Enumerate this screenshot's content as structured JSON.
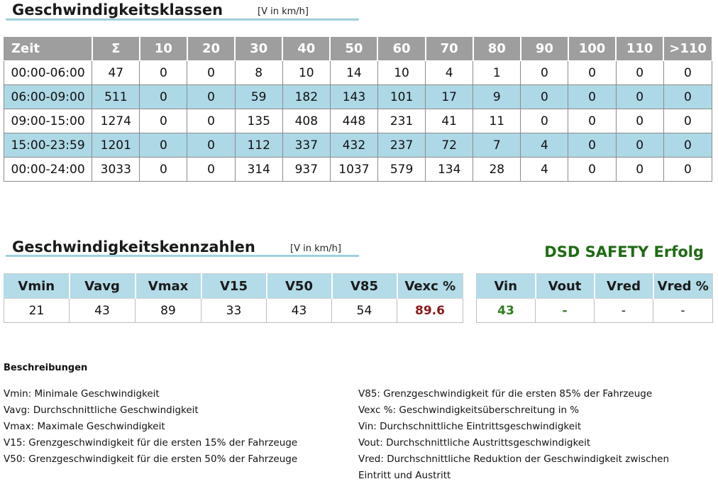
{
  "speed_classes": {
    "title": "Geschwindigkeitsklassen",
    "unit": "[V in km/h]",
    "headers": [
      "Zeit",
      "Σ",
      "10",
      "20",
      "30",
      "40",
      "50",
      "60",
      "70",
      "80",
      "90",
      "100",
      "110",
      ">110"
    ],
    "rows": [
      [
        "00:00-06:00",
        "47",
        "0",
        "0",
        "8",
        "10",
        "14",
        "10",
        "4",
        "1",
        "0",
        "0",
        "0",
        "0"
      ],
      [
        "06:00-09:00",
        "511",
        "0",
        "0",
        "59",
        "182",
        "143",
        "101",
        "17",
        "9",
        "0",
        "0",
        "0",
        "0"
      ],
      [
        "09:00-15:00",
        "1274",
        "0",
        "0",
        "135",
        "408",
        "448",
        "231",
        "41",
        "11",
        "0",
        "0",
        "0",
        "0"
      ],
      [
        "15:00-23:59",
        "1201",
        "0",
        "0",
        "112",
        "337",
        "432",
        "237",
        "72",
        "7",
        "4",
        "0",
        "0",
        "0"
      ],
      [
        "00:00-24:00",
        "3033",
        "0",
        "0",
        "314",
        "937",
        "1037",
        "579",
        "134",
        "28",
        "4",
        "0",
        "0",
        "0"
      ]
    ],
    "row_alt_color": "#add8e6",
    "header_color": "#9e9e9e"
  },
  "speed_metrics": {
    "title": "Geschwindigkeitskennzahlen",
    "unit": "[V in km/h]",
    "headers": [
      "Vmin",
      "Vavg",
      "Vmax",
      "V15",
      "V50",
      "V85",
      "Vexc %"
    ],
    "values": [
      "21",
      "43",
      "89",
      "33",
      "43",
      "54",
      "89.6"
    ],
    "vexc_color": "#8b1a1a"
  },
  "dsd": {
    "title": "DSD SAFETY Erfolg",
    "title_color": "#1f6b14",
    "headers": [
      "Vin",
      "Vout",
      "Vred",
      "Vred %"
    ],
    "values": [
      "43",
      "-",
      "-",
      "-"
    ]
  },
  "descriptions": {
    "heading": "Beschreibungen",
    "left": [
      "Vmin: Minimale Geschwindigkeit",
      "Vavg: Durchschnittliche Geschwindigkeit",
      "Vmax: Maximale Geschwindigkeit",
      "V15: Grenzgeschwindigkeit für die ersten 15% der Fahrzeuge",
      "V50: Grenzgeschwindigkeit für die ersten 50% der Fahrzeuge"
    ],
    "right": [
      "V85: Grenzgeschwindigkeit für die ersten 85% der Fahrzeuge",
      "Vexc %: Geschwindigkeitsüberschreitung in %",
      "Vin: Durchschnittliche Eintrittsgeschwindigkeit",
      "Vout: Durchschnittliche Austrittsgeschwindigkeit",
      "Vred: Durchschnittliche Reduktion der Geschwindigkeit zwischen Eintritt und Austritt"
    ]
  }
}
